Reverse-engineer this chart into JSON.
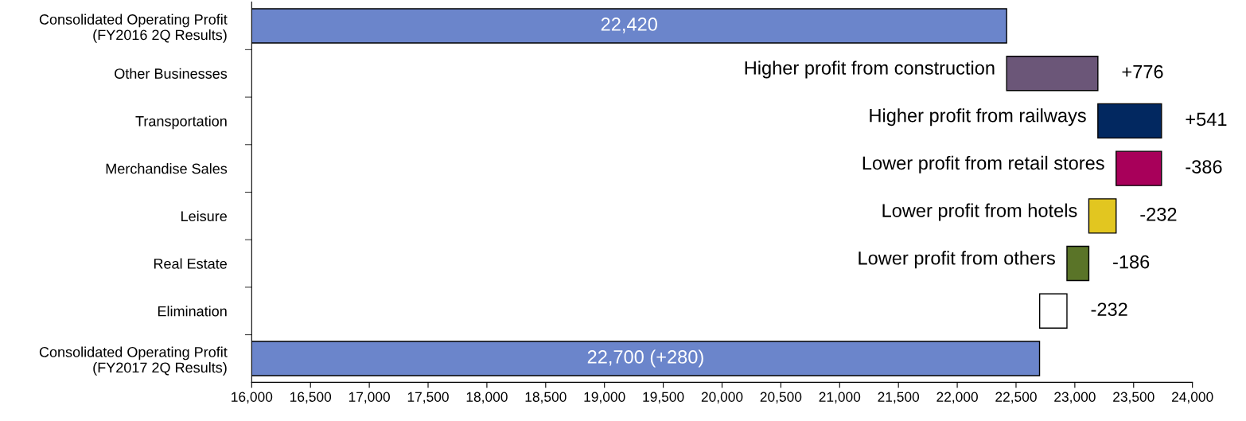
{
  "chart_data": {
    "type": "bar",
    "orientation": "horizontal",
    "categories": [
      "Consolidated Operating Profit\n(FY2016 2Q Results)",
      "Other Businesses",
      "Transportation",
      "Merchandise Sales",
      "Leisure",
      "Real Estate",
      "Elimination",
      "Consolidated Operating Profit\n(FY2017 2Q Results)"
    ],
    "values": [
      22420,
      776,
      541,
      -386,
      -232,
      -186,
      -232,
      22700
    ],
    "base": [
      null,
      22420,
      23196,
      23737,
      23351,
      23119,
      22933,
      null
    ],
    "colors": [
      "#6b85cb",
      "#6b5678",
      "#022860",
      "#a8005a",
      "#e2c620",
      "#5a7428",
      "#ffffff",
      "#6b85cb"
    ],
    "value_labels": [
      "22,420",
      "+776",
      "+541",
      "-386",
      "-232",
      "-186",
      "-232",
      "22,700 (+280)"
    ],
    "annotations": [
      {
        "text": "Higher profit from construction",
        "x": 22420,
        "y": "Other Businesses"
      },
      {
        "text": "Higher profit from railways",
        "x": 23196,
        "y": "Transportation"
      },
      {
        "text": "Lower profit from retail stores",
        "x": 23351,
        "y": "Merchandise Sales"
      },
      {
        "text": "Lower profit from hotels",
        "x": 23119,
        "y": "Leisure"
      },
      {
        "text": "Lower profit from others",
        "x": 22933,
        "y": "Real Estate"
      }
    ],
    "xlim": [
      16000,
      24000
    ],
    "xticks": [
      {
        "value": 16000,
        "label": "16,000"
      },
      {
        "value": 16500,
        "label": "16,500"
      },
      {
        "value": 17000,
        "label": "17,000"
      },
      {
        "value": 17500,
        "label": "17,500"
      },
      {
        "value": 18000,
        "label": "18,000"
      },
      {
        "value": 18500,
        "label": "18,500"
      },
      {
        "value": 19000,
        "label": "19,000"
      },
      {
        "value": 19500,
        "label": "19,500"
      },
      {
        "value": 20000,
        "label": "20,000"
      },
      {
        "value": 20500,
        "label": "20,500"
      },
      {
        "value": 21000,
        "label": "21,000"
      },
      {
        "value": 21500,
        "label": "21,500"
      },
      {
        "value": 22000,
        "label": "22,000"
      },
      {
        "value": 22500,
        "label": "22,500"
      },
      {
        "value": 23000,
        "label": "23,000"
      },
      {
        "value": 23500,
        "label": "23,500"
      },
      {
        "value": 24000,
        "label": "24,000"
      }
    ],
    "grid": false,
    "legend": false
  }
}
